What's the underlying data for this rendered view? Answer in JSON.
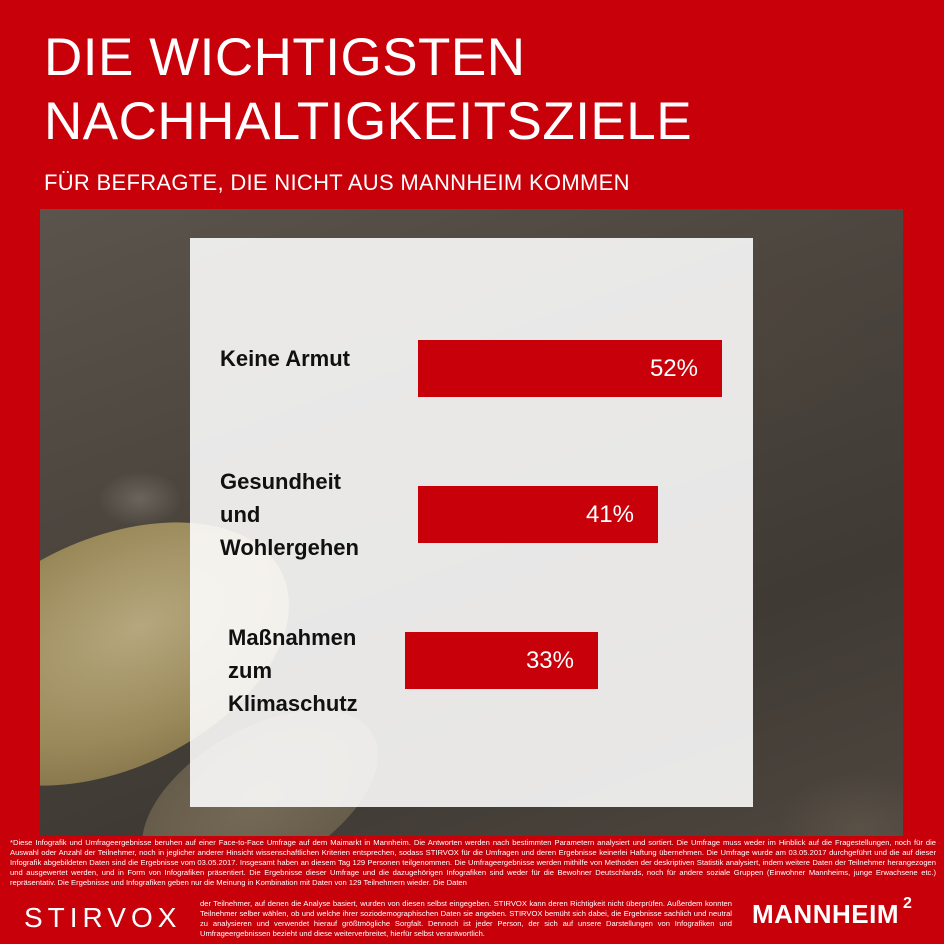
{
  "header": {
    "title_line1": "DIE WICHTIGSTEN",
    "title_line2": "NACHHALTIGKEITSZIELE",
    "subtitle": "FÜR BEFRAGTE, DIE NICHT AUS MANNHEIM KOMMEN"
  },
  "chart_data": {
    "type": "bar",
    "orientation": "horizontal",
    "categories": [
      [
        "Keine Armut"
      ],
      [
        "Gesundheit",
        "und",
        "Wohlergehen"
      ],
      [
        "Maßnahmen",
        "zum",
        "Klimaschutz"
      ]
    ],
    "values": [
      52,
      41,
      33
    ],
    "value_labels": [
      "52%",
      "41%",
      "33%"
    ],
    "bar_color": "#c8000a",
    "xlim": [
      0,
      52
    ]
  },
  "footer": {
    "text_main": "*Diese Infografik und Umfrageergebnisse beruhen auf einer Face-to-Face Umfrage auf dem Maimarkt in Mannheim. Die Antworten werden nach bestimmten Parametern analysiert und sortiert. Die Umfrage muss weder im Hinblick auf die Fragestellungen, noch für die Auswahl oder Anzahl der Teilnehmer, noch in jeglicher anderer Hinsicht wissenschaftlichen Kriterien entsprechen, sodass STIRVOX für die Umfragen und deren Ergebnisse keinerlei Haftung übernehmen. Die Umfrage wurde am 03.05.2017 durchgeführt und die auf dieser Infografik abgebildeten Daten sind die Ergebnisse vom 03.05.2017. Insgesamt haben an diesem Tag 129 Personen teilgenommen. Die Umfrageergebnisse werden mithilfe von Methoden der deskriptiven Statistik analysiert, indem weitere Daten der Teilnehmer herangezogen und ausgewertet werden, und in Form von Infografiken präsentiert. Die Ergebnisse dieser Umfrage und die dazugehörigen Infografiken sind weder für die Bewohner Deutschlands, noch für andere soziale Gruppen (Einwohner Mannheims, junge Erwachsene etc.) repräsentativ. Die Ergebnisse und Infografiken geben nur die Meinung in Kombination mit Daten von 129 Teilnehmern wieder. Die Daten",
    "text_cont": "der Teilnehmer, auf denen die Analyse basiert, wurden von diesen selbst eingegeben. STIRVOX kann deren Richtigkeit nicht überprüfen. Außerdem konnten Teilnehmer selber wählen, ob und welche ihrer soziodemographischen Daten sie angeben. STIRVOX bemüht sich dabei, die Ergebnisse sachlich und neutral zu analysieren und verwendet hierauf größtmögliche Sorgfalt. Dennoch ist jeder Person, der sich auf unsere Darstellungen von Infografiken und Umfrageergebnissen bezieht und diese weiterverbreitet, hierfür selbst verantwortlich."
  },
  "logos": {
    "left": "STIRVOX",
    "right": "MANNHEIM",
    "right_sup": "2"
  }
}
